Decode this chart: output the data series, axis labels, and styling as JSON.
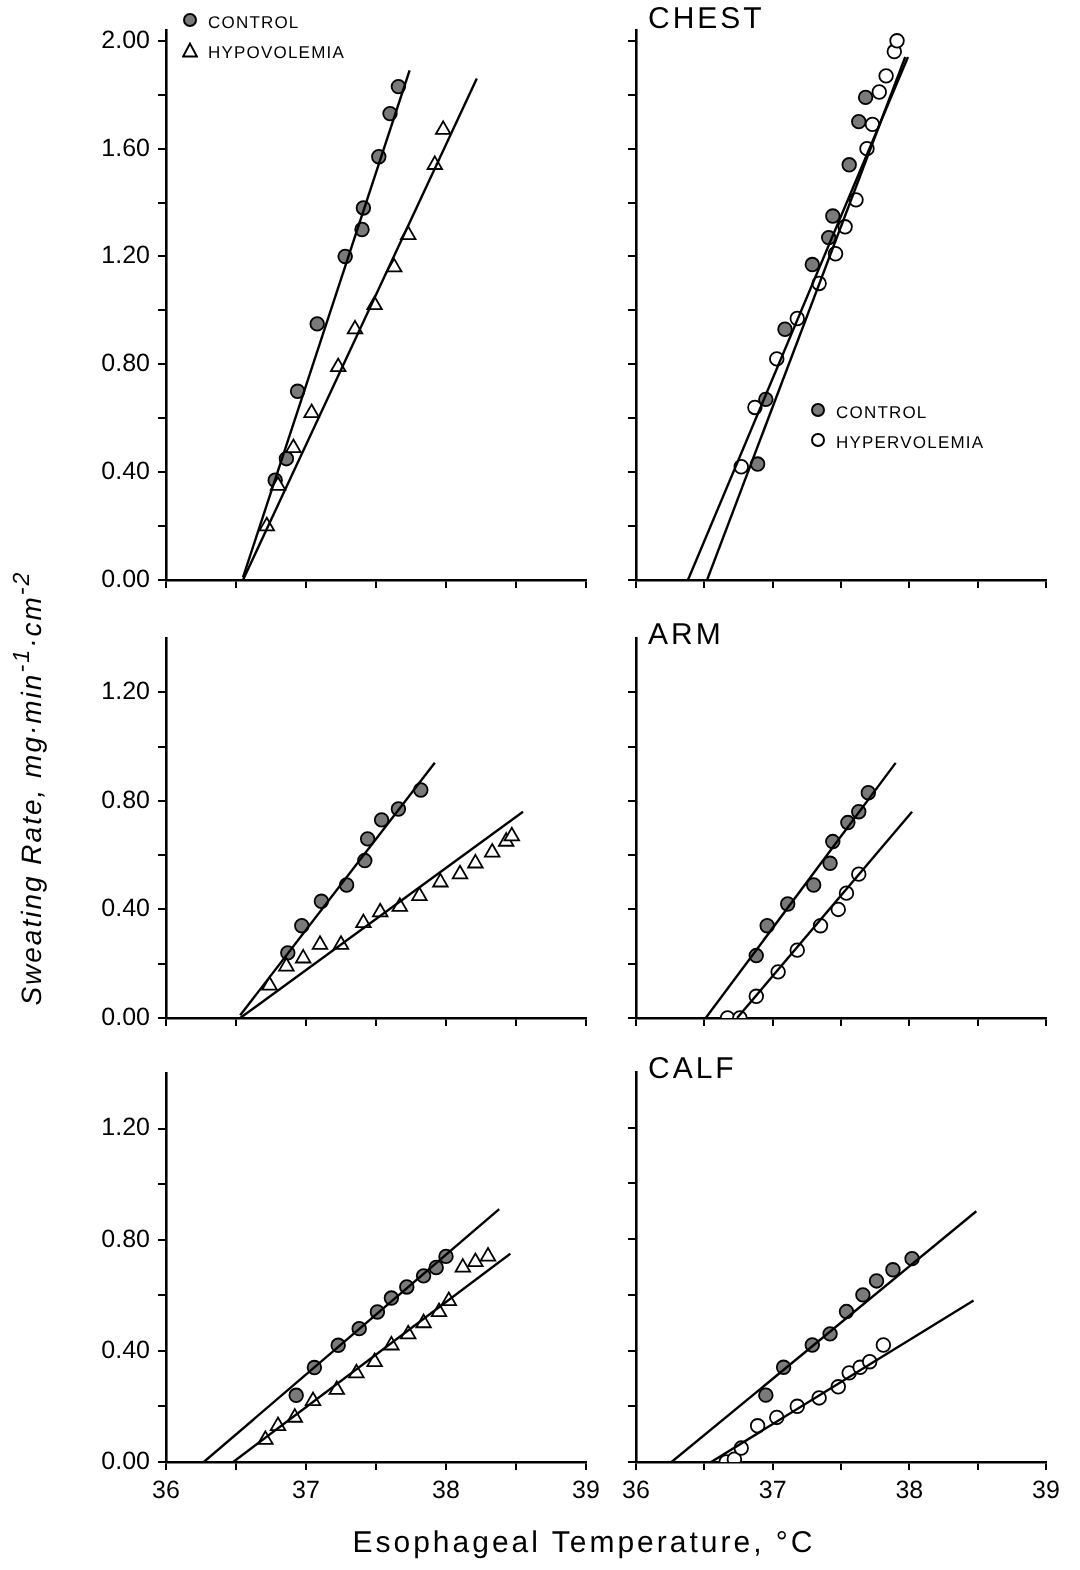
{
  "chart_data": [
    {
      "type": "scatter",
      "xlim": [
        36,
        39
      ],
      "ylim": [
        0,
        2.04
      ],
      "xticks": [
        36,
        {
          "value": 36.5,
          "label": null
        },
        37,
        {
          "value": 37.5,
          "label": null
        },
        38,
        {
          "value": 38.5,
          "label": null
        },
        39
      ],
      "yticks": [
        {
          "value": 0,
          "label": "0.00"
        },
        {
          "value": 0.2,
          "label": null
        },
        {
          "value": 0.4,
          "label": "0.40"
        },
        {
          "value": 0.6,
          "label": null
        },
        {
          "value": 0.8,
          "label": "0.80"
        },
        {
          "value": 1.0,
          "label": null
        },
        {
          "value": 1.2,
          "label": "1.20"
        },
        {
          "value": 1.4,
          "label": null
        },
        {
          "value": 1.6,
          "label": "1.60"
        },
        {
          "value": 1.8,
          "label": null
        },
        {
          "value": 2.0,
          "label": "2.00"
        }
      ],
      "tick_labels": "y",
      "legend": "top left",
      "series": [
        {
          "name": "CONTROL",
          "color": "#7a7a7a",
          "marker": "circle",
          "x": [
            36.78,
            36.86,
            36.94,
            37.08,
            37.28,
            37.4,
            37.41,
            37.52,
            37.6,
            37.66
          ],
          "values": [
            0.37,
            0.45,
            0.7,
            0.95,
            1.2,
            1.3,
            1.38,
            1.57,
            1.73,
            1.83
          ]
        },
        {
          "name": "HYPOVOLEMIA",
          "color": "#ffffff",
          "marker": "triangle",
          "x": [
            36.72,
            36.8,
            36.91,
            37.04,
            37.23,
            37.35,
            37.49,
            37.63,
            37.73,
            37.92,
            37.98
          ],
          "values": [
            0.2,
            0.35,
            0.49,
            0.62,
            0.79,
            0.93,
            1.02,
            1.16,
            1.28,
            1.54,
            1.67
          ]
        },
        {
          "type": "line",
          "color": "#000000",
          "marker": "none",
          "x": [
            36.55,
            37.74
          ],
          "values": [
            0.01,
            1.89
          ]
        },
        {
          "type": "line",
          "color": "#000000",
          "marker": "none",
          "x": [
            36.55,
            38.22
          ],
          "values": [
            0,
            1.86
          ]
        }
      ]
    },
    {
      "type": "scatter",
      "title": "CHEST",
      "xlim": [
        36,
        39
      ],
      "ylim": [
        0,
        2.04
      ],
      "xticks": [
        36,
        {
          "value": 36.5,
          "label": null
        },
        37,
        {
          "value": 37.5,
          "label": null
        },
        38,
        {
          "value": 38.5,
          "label": null
        },
        39
      ],
      "yticks": [
        {
          "value": 0,
          "label": null
        },
        {
          "value": 0.2,
          "label": null
        },
        {
          "value": 0.4,
          "label": null
        },
        {
          "value": 0.6,
          "label": null
        },
        {
          "value": 0.8,
          "label": null
        },
        {
          "value": 1.0,
          "label": null
        },
        {
          "value": 1.2,
          "label": null
        },
        {
          "value": 1.4,
          "label": null
        },
        {
          "value": 1.6,
          "label": null
        },
        {
          "value": 1.8,
          "label": null
        },
        {
          "value": 2.0,
          "label": null
        }
      ],
      "tick_labels": false,
      "legend": "bottom right",
      "series": [
        {
          "name": "CONTROL",
          "color": "#7a7a7a",
          "marker": "circle",
          "x": [
            36.89,
            36.95,
            37.09,
            37.29,
            37.41,
            37.44,
            37.56,
            37.63,
            37.68
          ],
          "values": [
            0.43,
            0.67,
            0.93,
            1.17,
            1.27,
            1.35,
            1.54,
            1.7,
            1.79
          ]
        },
        {
          "name": "HYPERVOLEMIA",
          "color": "#ffffff",
          "marker": "circle",
          "x": [
            36.77,
            36.87,
            37.03,
            37.18,
            37.34,
            37.46,
            37.53,
            37.61,
            37.69,
            37.73,
            37.78,
            37.83,
            37.89,
            37.91
          ],
          "values": [
            0.42,
            0.64,
            0.82,
            0.97,
            1.1,
            1.21,
            1.31,
            1.41,
            1.6,
            1.69,
            1.81,
            1.87,
            1.96,
            2.0
          ]
        },
        {
          "type": "line",
          "color": "#000000",
          "marker": "none",
          "x": [
            36.52,
            37.97
          ],
          "values": [
            0,
            1.94
          ]
        },
        {
          "type": "line",
          "color": "#000000",
          "marker": "none",
          "x": [
            36.38,
            37.99
          ],
          "values": [
            0,
            1.94
          ]
        }
      ]
    },
    {
      "type": "scatter",
      "ylabel": "Sweating Rate, mg·min$^{-1}$·cm$^{-2}$",
      "xlim": [
        36,
        39
      ],
      "ylim": [
        0,
        1.4
      ],
      "xticks": [
        36,
        {
          "value": 36.5,
          "label": null
        },
        37,
        {
          "value": 37.5,
          "label": null
        },
        38,
        {
          "value": 38.5,
          "label": null
        },
        39
      ],
      "yticks": [
        {
          "value": 0,
          "label": "0.00"
        },
        {
          "value": 0.2,
          "label": null
        },
        {
          "value": 0.4,
          "label": "0.40"
        },
        {
          "value": 0.6,
          "label": null
        },
        {
          "value": 0.8,
          "label": "0.80"
        },
        {
          "value": 1.0,
          "label": null
        },
        {
          "value": 1.2,
          "label": "1.20"
        }
      ],
      "tick_labels": "y",
      "series": [
        {
          "color": "#7a7a7a",
          "marker": "circle",
          "x": [
            36.87,
            36.97,
            37.11,
            37.29,
            37.42,
            37.44,
            37.54,
            37.66,
            37.82
          ],
          "values": [
            0.24,
            0.34,
            0.43,
            0.49,
            0.58,
            0.66,
            0.73,
            0.77,
            0.84
          ]
        },
        {
          "color": "#ffffff",
          "marker": "triangle",
          "x": [
            36.74,
            36.86,
            36.98,
            37.1,
            37.25,
            37.41,
            37.53,
            37.67,
            37.81,
            37.96,
            38.1,
            38.21,
            38.33,
            38.43,
            38.47
          ],
          "values": [
            0.12,
            0.19,
            0.22,
            0.27,
            0.27,
            0.35,
            0.39,
            0.41,
            0.45,
            0.5,
            0.53,
            0.57,
            0.61,
            0.65,
            0.67
          ]
        },
        {
          "type": "line",
          "color": "#000000",
          "marker": "none",
          "x": [
            36.53,
            37.92
          ],
          "values": [
            0.01,
            0.94
          ]
        },
        {
          "type": "line",
          "color": "#000000",
          "marker": "none",
          "x": [
            36.53,
            38.55
          ],
          "values": [
            0,
            0.76
          ]
        }
      ]
    },
    {
      "type": "scatter",
      "title": "ARM",
      "xlim": [
        36,
        39
      ],
      "ylim": [
        0,
        1.4
      ],
      "xticks": [
        36,
        {
          "value": 36.5,
          "label": null
        },
        37,
        {
          "value": 37.5,
          "label": null
        },
        38,
        {
          "value": 38.5,
          "label": null
        },
        39
      ],
      "yticks": [
        {
          "value": 0,
          "label": null
        },
        {
          "value": 0.2,
          "label": null
        },
        {
          "value": 0.4,
          "label": null
        },
        {
          "value": 0.6,
          "label": null
        },
        {
          "value": 0.8,
          "label": null
        },
        {
          "value": 1.0,
          "label": null
        },
        {
          "value": 1.2,
          "label": null
        }
      ],
      "tick_labels": false,
      "series": [
        {
          "color": "#7a7a7a",
          "marker": "circle",
          "x": [
            36.88,
            36.96,
            37.11,
            37.3,
            37.42,
            37.44,
            37.55,
            37.63,
            37.7
          ],
          "values": [
            0.23,
            0.34,
            0.42,
            0.49,
            0.57,
            0.65,
            0.72,
            0.76,
            0.83
          ]
        },
        {
          "color": "#ffffff",
          "marker": "circle",
          "x": [
            36.67,
            36.76,
            36.88,
            37.04,
            37.18,
            37.35,
            37.48,
            37.54,
            37.63
          ],
          "values": [
            0,
            0,
            0.08,
            0.17,
            0.25,
            0.34,
            0.4,
            0.46,
            0.53
          ]
        },
        {
          "type": "line",
          "color": "#000000",
          "marker": "none",
          "x": [
            36.51,
            37.9
          ],
          "values": [
            0,
            0.94
          ]
        },
        {
          "type": "line",
          "color": "#000000",
          "marker": "none",
          "x": [
            36.74,
            38.02
          ],
          "values": [
            0,
            0.76
          ]
        }
      ]
    },
    {
      "type": "scatter",
      "xlabel": "Esophageal Temperature, °C",
      "xlim": [
        36,
        39
      ],
      "ylim": [
        0,
        1.4
      ],
      "xticks": [
        36,
        {
          "value": 36.5,
          "label": null
        },
        37,
        {
          "value": 37.5,
          "label": null
        },
        38,
        {
          "value": 38.5,
          "label": null
        },
        39
      ],
      "yticks": [
        {
          "value": 0,
          "label": "0.00"
        },
        {
          "value": 0.2,
          "label": null
        },
        {
          "value": 0.4,
          "label": "0.40"
        },
        {
          "value": 0.6,
          "label": null
        },
        {
          "value": 0.8,
          "label": "0.80"
        },
        {
          "value": 1.0,
          "label": null
        },
        {
          "value": 1.2,
          "label": "1.20"
        }
      ],
      "series": [
        {
          "color": "#7a7a7a",
          "marker": "circle",
          "x": [
            36.93,
            37.06,
            37.23,
            37.38,
            37.51,
            37.61,
            37.72,
            37.84,
            37.93,
            38.0
          ],
          "values": [
            0.24,
            0.34,
            0.42,
            0.48,
            0.54,
            0.59,
            0.63,
            0.67,
            0.7,
            0.74
          ]
        },
        {
          "color": "#ffffff",
          "marker": "triangle",
          "x": [
            36.71,
            36.8,
            36.92,
            37.05,
            37.22,
            37.36,
            37.49,
            37.61,
            37.73,
            37.84,
            37.95,
            38.02,
            38.12,
            38.21,
            38.3
          ],
          "values": [
            0.08,
            0.13,
            0.16,
            0.22,
            0.26,
            0.32,
            0.36,
            0.42,
            0.46,
            0.5,
            0.54,
            0.58,
            0.7,
            0.72,
            0.74
          ]
        },
        {
          "type": "line",
          "color": "#000000",
          "marker": "none",
          "x": [
            36.27,
            38.38
          ],
          "values": [
            0,
            0.91
          ]
        },
        {
          "type": "line",
          "color": "#000000",
          "marker": "none",
          "x": [
            36.48,
            38.46
          ],
          "values": [
            0,
            0.75
          ]
        }
      ]
    },
    {
      "type": "scatter",
      "title": "CALF",
      "xlim": [
        36,
        39
      ],
      "ylim": [
        0,
        1.4
      ],
      "xticks": [
        36,
        {
          "value": 36.5,
          "label": null
        },
        37,
        {
          "value": 37.5,
          "label": null
        },
        38,
        {
          "value": 38.5,
          "label": null
        },
        39
      ],
      "yticks": [
        {
          "value": 0,
          "label": null
        },
        {
          "value": 0.2,
          "label": null
        },
        {
          "value": 0.4,
          "label": null
        },
        {
          "value": 0.6,
          "label": null
        },
        {
          "value": 0.8,
          "label": null
        },
        {
          "value": 1.0,
          "label": null
        },
        {
          "value": 1.2,
          "label": null
        }
      ],
      "tick_labels": "x",
      "series": [
        {
          "color": "#7a7a7a",
          "marker": "circle",
          "x": [
            36.95,
            37.08,
            37.29,
            37.42,
            37.54,
            37.66,
            37.76,
            37.88,
            38.02
          ],
          "values": [
            0.24,
            0.34,
            0.42,
            0.46,
            0.54,
            0.6,
            0.65,
            0.69,
            0.73
          ]
        },
        {
          "color": "#ffffff",
          "marker": "circle",
          "x": [
            36.66,
            36.72,
            36.77,
            36.89,
            37.03,
            37.18,
            37.34,
            37.48,
            37.56,
            37.64,
            37.71,
            37.81
          ],
          "values": [
            0,
            0.01,
            0.05,
            0.13,
            0.16,
            0.2,
            0.23,
            0.27,
            0.32,
            0.34,
            0.36,
            0.42
          ]
        },
        {
          "type": "line",
          "color": "#000000",
          "marker": "none",
          "x": [
            36.26,
            38.49
          ],
          "values": [
            0,
            0.9
          ]
        },
        {
          "type": "line",
          "color": "#000000",
          "marker": "none",
          "x": [
            36.55,
            38.47
          ],
          "values": [
            0,
            0.58
          ]
        }
      ]
    }
  ]
}
